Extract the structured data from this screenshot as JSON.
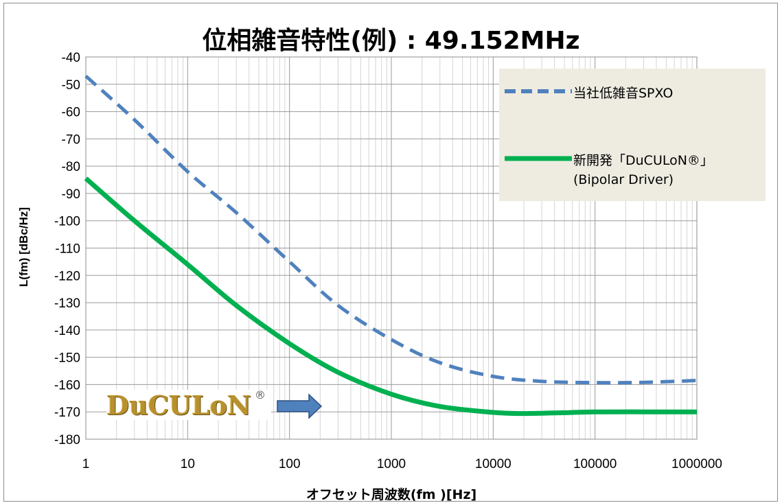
{
  "chart_data": {
    "type": "line",
    "title": "位相雑音特性(例) : 49.152MHz",
    "xlabel": "オフセット周波数(fm )[Hz]",
    "ylabel": "L(fm) [dBc/Hz]",
    "x_scale": "log",
    "xlim": [
      1,
      1000000
    ],
    "ylim": [
      -180,
      -40
    ],
    "x_ticks": [
      "1",
      "10",
      "100",
      "1000",
      "10000",
      "100000",
      "1000000"
    ],
    "y_ticks": [
      "-40",
      "-50",
      "-60",
      "-70",
      "-80",
      "-90",
      "-100",
      "-110",
      "-120",
      "-130",
      "-140",
      "-150",
      "-160",
      "-170",
      "-180"
    ],
    "grid": true,
    "legend_position": "top-right",
    "series": [
      {
        "name": "当社低雑音SPXO",
        "style": "dashed",
        "color": "#4f81bd",
        "x": [
          1,
          3,
          10,
          30,
          100,
          300,
          1000,
          3000,
          10000,
          30000,
          100000,
          300000,
          1000000
        ],
        "y": [
          -47,
          -63,
          -82,
          -97,
          -115,
          -131,
          -143.5,
          -152,
          -157,
          -158.8,
          -159.3,
          -159.2,
          -158.5
        ]
      },
      {
        "name": "新開発「DuCULoN®」",
        "name_line2": "(Bipolar Driver)",
        "style": "solid",
        "color": "#00b050",
        "x": [
          1,
          3,
          10,
          30,
          100,
          300,
          1000,
          3000,
          10000,
          20000,
          50000,
          100000,
          300000,
          1000000
        ],
        "y": [
          -84.5,
          -100,
          -116,
          -131,
          -145,
          -155.5,
          -163.5,
          -168,
          -170.2,
          -170.6,
          -170.3,
          -170,
          -170,
          -170
        ]
      }
    ]
  },
  "logo": {
    "text": "DuCULoN",
    "mark": "®",
    "arrow": "right-arrow-icon",
    "arrow_color": "#4f81bd"
  }
}
